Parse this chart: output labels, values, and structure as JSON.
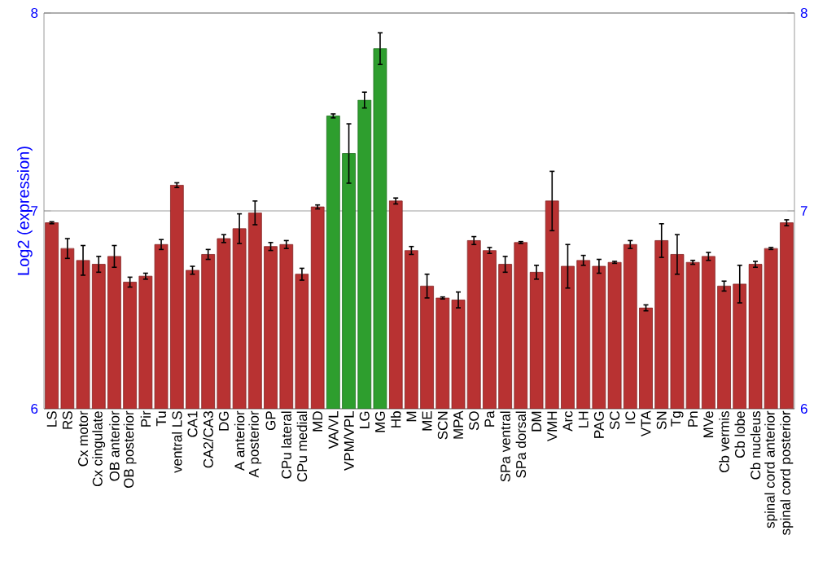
{
  "chart_data": {
    "type": "bar",
    "ylabel": "Log2 (expression)",
    "categories": [
      "LS",
      "RS",
      "Cx motor",
      "Cx cingulate",
      "OB anterior",
      "OB posterior",
      "Pir",
      "Tu",
      "ventral LS",
      "CA1",
      "CA2/CA3",
      "DG",
      "A anterior",
      "A posterior",
      "GP",
      "CPu lateral",
      "CPu medial",
      "MD",
      "VA/VL",
      "VPM/VPL",
      "LG",
      "MG",
      "Hb",
      "M",
      "ME",
      "SCN",
      "MPA",
      "SO",
      "Pa",
      "SPa ventral",
      "SPa dorsal",
      "DM",
      "VMH",
      "Arc",
      "LH",
      "PAG",
      "SC",
      "IC",
      "VTA",
      "SN",
      "Tg",
      "Pn",
      "MVe",
      "Cb vermis",
      "Cb lobe",
      "Cb nucleus",
      "spinal cord anterior",
      "spinal cord posterior"
    ],
    "values": [
      6.94,
      6.81,
      6.75,
      6.73,
      6.77,
      6.64,
      6.67,
      6.83,
      7.13,
      6.7,
      6.78,
      6.86,
      6.91,
      6.99,
      6.82,
      6.83,
      6.68,
      7.02,
      7.48,
      7.29,
      7.56,
      7.82,
      7.05,
      6.8,
      6.62,
      6.56,
      6.55,
      6.85,
      6.8,
      6.73,
      6.84,
      6.69,
      7.05,
      6.72,
      6.75,
      6.72,
      6.74,
      6.83,
      6.51,
      6.85,
      6.78,
      6.74,
      6.77,
      6.62,
      6.63,
      6.73,
      6.81,
      6.94
    ],
    "errors": [
      0.005,
      0.05,
      0.075,
      0.04,
      0.055,
      0.025,
      0.015,
      0.025,
      0.012,
      0.02,
      0.025,
      0.02,
      0.075,
      0.06,
      0.02,
      0.02,
      0.03,
      0.01,
      0.01,
      0.15,
      0.04,
      0.08,
      0.015,
      0.02,
      0.06,
      0.005,
      0.04,
      0.02,
      0.015,
      0.04,
      0.005,
      0.035,
      0.15,
      0.11,
      0.025,
      0.035,
      0.005,
      0.02,
      0.015,
      0.085,
      0.1,
      0.01,
      0.02,
      0.025,
      0.095,
      0.015,
      0.005,
      0.015
    ],
    "colors": [
      "#b83232",
      "#b83232",
      "#b83232",
      "#b83232",
      "#b83232",
      "#b83232",
      "#b83232",
      "#b83232",
      "#b83232",
      "#b83232",
      "#b83232",
      "#b83232",
      "#b83232",
      "#b83232",
      "#b83232",
      "#b83232",
      "#b83232",
      "#b83232",
      "#2e9e2e",
      "#2e9e2e",
      "#2e9e2e",
      "#2e9e2e",
      "#b83232",
      "#b83232",
      "#b83232",
      "#b83232",
      "#b83232",
      "#b83232",
      "#b83232",
      "#b83232",
      "#b83232",
      "#b83232",
      "#b83232",
      "#b83232",
      "#b83232",
      "#b83232",
      "#b83232",
      "#b83232",
      "#b83232",
      "#b83232",
      "#b83232",
      "#b83232",
      "#b83232",
      "#b83232",
      "#b83232",
      "#b83232",
      "#b83232",
      "#b83232"
    ],
    "ylim": [
      6,
      8
    ],
    "yticks": [
      6,
      7,
      8
    ],
    "y2lim": [
      6,
      8
    ],
    "y2ticks": [
      6,
      7,
      8
    ],
    "grid": "y"
  }
}
